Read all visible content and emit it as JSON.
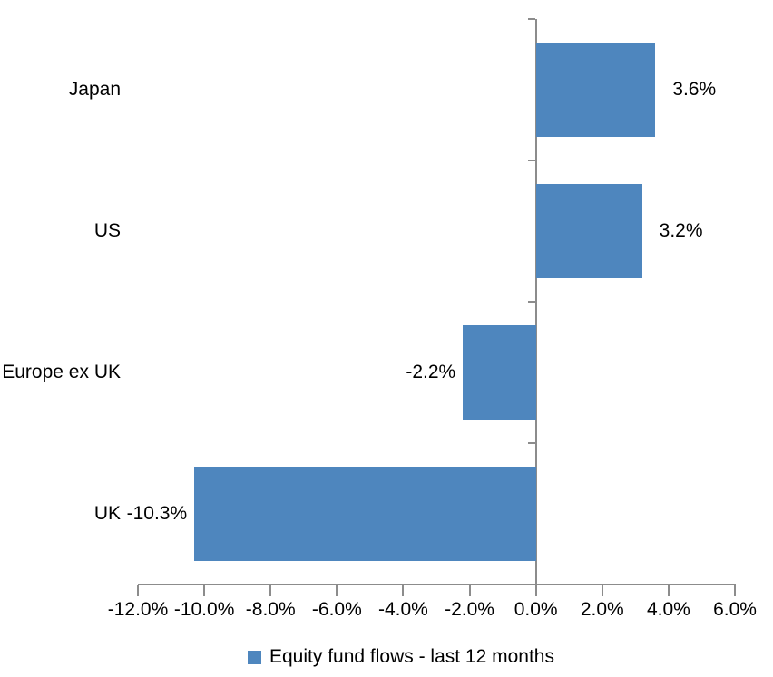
{
  "chart_data": {
    "type": "bar",
    "orientation": "horizontal",
    "title": "",
    "xlabel": "",
    "ylabel": "",
    "categories": [
      "Japan",
      "US",
      "Europe ex UK",
      "UK"
    ],
    "series": [
      {
        "name": "Equity fund flows - last 12 months",
        "values": [
          3.6,
          3.2,
          -2.2,
          -10.3
        ],
        "data_labels": [
          "3.6%",
          "3.2%",
          "-2.2%",
          "-10.3%"
        ]
      }
    ],
    "xlim": [
      -12,
      6
    ],
    "x_tick_step": 2,
    "x_tick_labels": [
      "-12.0%",
      "-10.0%",
      "-8.0%",
      "-6.0%",
      "-4.0%",
      "-2.0%",
      "0.0%",
      "2.0%",
      "4.0%",
      "6.0%"
    ],
    "grid": false,
    "legend_position": "bottom",
    "colors": {
      "bar": "#4E86BE",
      "axis": "#8C8C8C",
      "text": "#000000",
      "background": "#FFFFFF"
    }
  },
  "legend": {
    "label": "Equity fund flows - last 12 months"
  }
}
